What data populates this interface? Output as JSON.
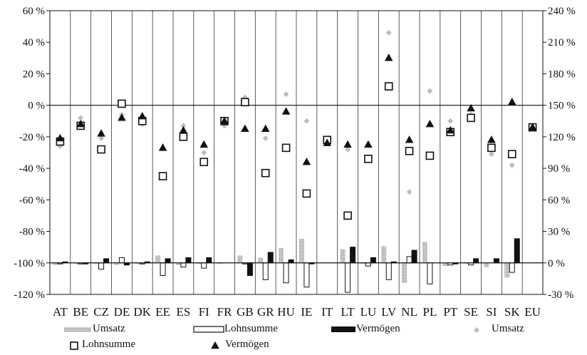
{
  "chart_data": {
    "type": "bar",
    "categories": [
      "AT",
      "BE",
      "CZ",
      "DE",
      "DK",
      "EE",
      "ES",
      "FI",
      "FR",
      "GB",
      "GR",
      "HU",
      "IE",
      "IT",
      "LT",
      "LU",
      "LV",
      "NL",
      "PL",
      "PT",
      "SE",
      "SI",
      "SK",
      "EU"
    ],
    "left_axis": {
      "range": [
        -120,
        60
      ],
      "ticks": [
        "60 %",
        "40 %",
        "20 %",
        "0 %",
        "-20 %",
        "-40 %",
        "-60 %",
        "-80 %",
        "-100 %",
        "-120 %"
      ]
    },
    "right_axis": {
      "range": [
        -30,
        240
      ],
      "ticks": [
        "240 %",
        "210 %",
        "180 %",
        "150 %",
        "120 %",
        "90 %",
        "60 %",
        "30 %",
        "0 %",
        "-30 %"
      ]
    },
    "bar_series": [
      {
        "name": "Umsatz",
        "axis": "right",
        "values": [
          -2,
          -1,
          -1,
          -2,
          -1,
          7,
          -2,
          -1,
          -1,
          7,
          5,
          14,
          23,
          0,
          13,
          -1,
          16,
          -19,
          20,
          -3,
          -1,
          -4,
          -14,
          0
        ]
      },
      {
        "name": "Lohnsumme",
        "axis": "right",
        "values": [
          -1,
          -1,
          -6,
          5,
          -1,
          -12,
          -4,
          -5,
          0,
          -1,
          -16,
          -19,
          -23,
          0,
          -28,
          -3,
          -16,
          6,
          -20,
          -2,
          -2,
          0,
          -9,
          0
        ]
      },
      {
        "name": "Vermögen",
        "axis": "right",
        "values": [
          1,
          -1,
          4,
          -2,
          1,
          4,
          5,
          5,
          0,
          -12,
          10,
          3,
          -1,
          0,
          15,
          5,
          1,
          12,
          0,
          -1,
          4,
          4,
          23,
          0
        ]
      }
    ],
    "marker_series": [
      {
        "name": "Umsatz",
        "axis": "left",
        "values": [
          -26,
          -8,
          -21,
          -6,
          -12,
          -27,
          -13,
          -30,
          -13,
          5,
          -21,
          7,
          -10,
          -23,
          -28,
          -33,
          46,
          -55,
          9,
          -10,
          -6,
          -31,
          -38,
          -15
        ]
      },
      {
        "name": "Lohnsumme",
        "axis": "left",
        "values": [
          -23,
          -13,
          -28,
          1,
          -10,
          -45,
          -20,
          -36,
          -10,
          2,
          -43,
          -27,
          -56,
          -22,
          -70,
          -34,
          12,
          -29,
          -32,
          -17,
          -8,
          -27,
          -31,
          -14
        ]
      },
      {
        "name": "Vermögen",
        "axis": "left",
        "values": [
          -21,
          -12,
          -18,
          -8,
          -7,
          -27,
          -16,
          -25,
          -10,
          -15,
          -15,
          -4,
          -36,
          -24,
          -25,
          -25,
          30,
          -22,
          -12,
          -16,
          -2,
          -22,
          2,
          -14
        ]
      }
    ],
    "legend": {
      "placement": "bottom"
    },
    "colors": {
      "umsatz_bar": "#b8b8b8",
      "lohnsumme_bar": "#ffffff",
      "vermoegen_bar": "#111111",
      "umsatz_marker": "#bdbdbd",
      "marker_dark": "#111111"
    },
    "grid": {
      "vertical_lines_between_categories": true
    }
  }
}
